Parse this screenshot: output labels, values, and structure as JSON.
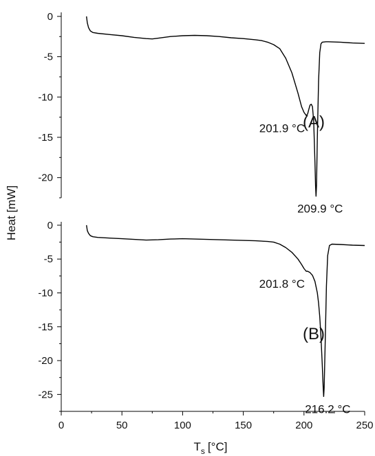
{
  "chart_data": {
    "type": "line",
    "ylabel": "Heat [mW]",
    "xlabel": {
      "main": "T",
      "sub": "s",
      "unit": "[°C]"
    },
    "xlim": [
      0,
      250
    ],
    "xticks": [
      "0",
      "50",
      "100",
      "150",
      "200",
      "250"
    ],
    "panels": [
      {
        "label": "(A)",
        "ylim": [
          -22.5,
          0.5
        ],
        "yticks": [
          "0",
          "-5",
          "-10",
          "-15",
          "-20"
        ],
        "annotations": [
          {
            "text": "201.9 °C",
            "x": 201.9,
            "y": -12.3
          },
          {
            "text": "209.9 °C",
            "x": 209.9,
            "y": -22.3
          }
        ],
        "series": [
          {
            "color": "#000000",
            "x": [
              20.8,
              21.5,
              22.5,
              24,
              26,
              30,
              40,
              50,
              60,
              70,
              75,
              80,
              90,
              100,
              110,
              120,
              130,
              140,
              150,
              160,
              165,
              170,
              175,
              180,
              185,
              190,
              195,
              198,
              200,
              201.9,
              203,
              204,
              205,
              206,
              207,
              208,
              209,
              209.5,
              209.9,
              210.3,
              211,
              212,
              213,
              214,
              215,
              218,
              220,
              230,
              240,
              250
            ],
            "y": [
              0,
              -0.8,
              -1.4,
              -1.8,
              -2.0,
              -2.1,
              -2.25,
              -2.4,
              -2.6,
              -2.75,
              -2.8,
              -2.7,
              -2.5,
              -2.4,
              -2.35,
              -2.4,
              -2.5,
              -2.65,
              -2.75,
              -2.9,
              -3.0,
              -3.2,
              -3.5,
              -4.0,
              -5.2,
              -7.0,
              -9.5,
              -11.2,
              -11.9,
              -12.3,
              -12.1,
              -11.5,
              -11.0,
              -10.9,
              -11.2,
              -13.0,
              -18.0,
              -21.0,
              -22.3,
              -21.0,
              -15.0,
              -8.0,
              -4.5,
              -3.4,
              -3.2,
              -3.15,
              -3.15,
              -3.2,
              -3.3,
              -3.35
            ]
          }
        ]
      },
      {
        "label": "(B)",
        "ylim": [
          -27.5,
          0.5
        ],
        "yticks": [
          "0",
          "-5",
          "-10",
          "-15",
          "-20",
          "-25"
        ],
        "annotations": [
          {
            "text": "201.8 °C",
            "x": 201.8,
            "y": -6.8
          },
          {
            "text": "216.2 °C",
            "x": 216.2,
            "y": -25.3
          }
        ],
        "series": [
          {
            "color": "#000000",
            "x": [
              20.8,
              21.5,
              22.5,
              24,
              26,
              30,
              40,
              50,
              60,
              70,
              80,
              90,
              100,
              110,
              120,
              130,
              140,
              150,
              160,
              170,
              175,
              180,
              185,
              190,
              195,
              198,
              200,
              201.8,
              203,
              205,
              207,
              209,
              211,
              212,
              213,
              214,
              215,
              215.8,
              216.2,
              216.6,
              217.5,
              218.5,
              219.5,
              221,
              223,
              230,
              240,
              250
            ],
            "y": [
              0,
              -0.8,
              -1.2,
              -1.55,
              -1.7,
              -1.8,
              -1.9,
              -2.0,
              -2.1,
              -2.2,
              -2.15,
              -2.05,
              -2.0,
              -2.05,
              -2.1,
              -2.15,
              -2.2,
              -2.25,
              -2.3,
              -2.4,
              -2.5,
              -2.8,
              -3.3,
              -4.0,
              -5.0,
              -5.8,
              -6.4,
              -6.8,
              -6.8,
              -7.0,
              -7.4,
              -8.3,
              -10.0,
              -11.5,
              -13.5,
              -16.5,
              -20.5,
              -24.0,
              -25.3,
              -24.0,
              -17.0,
              -9.0,
              -4.5,
              -3.0,
              -2.8,
              -2.85,
              -2.95,
              -3.0
            ]
          }
        ]
      }
    ]
  }
}
